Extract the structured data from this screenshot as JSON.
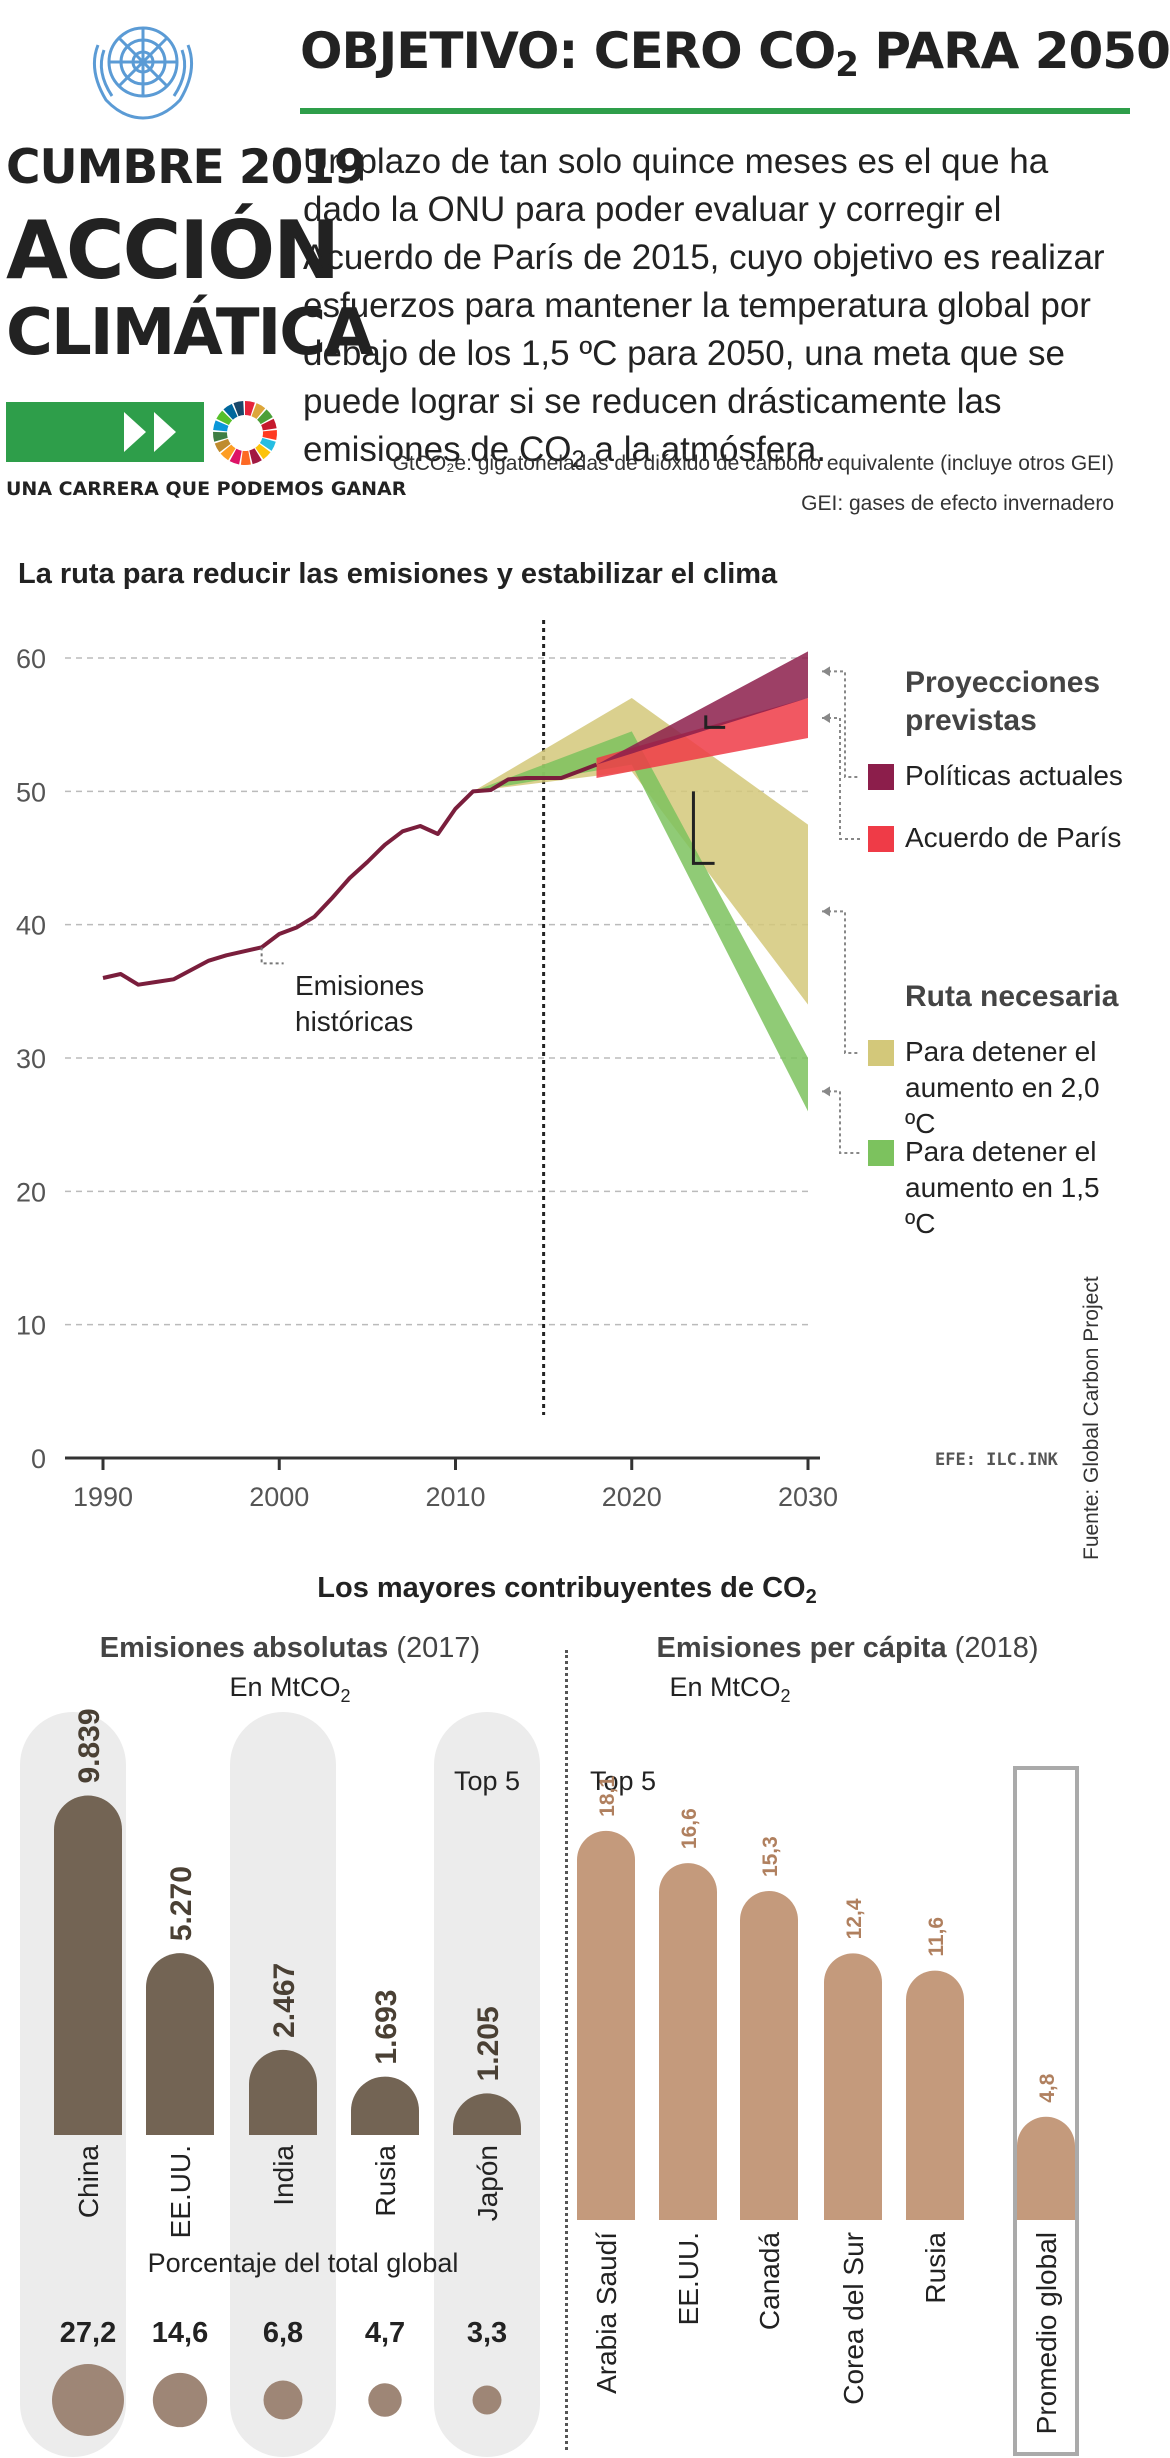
{
  "header": {
    "title_part1": "OBJETIVO: CERO CO",
    "title_sub": "2",
    "title_part2": " PARA 2050",
    "summit_line1": "CUMBRE 2019",
    "summit_line2": "ACCIÓN",
    "summit_line3": "CLIMÁTICA",
    "tagline": "UNA CARRERA QUE PODEMOS GANAR",
    "colors": {
      "un_blue": "#5b9bd5",
      "accent_green": "#2e9e4a"
    }
  },
  "intro": {
    "text_part1": "Un plazo de tan solo quince meses es el que ha dado la ONU para poder evaluar y corregir el Acuerdo de París de 2015, cuyo objetivo es realizar esfuerzos para mantener la temperatura global por debajo de los 1,5 ºC para 2050, una meta que se puede lograr si se reducen drásticamente las emisiones de CO",
    "text_sub": "2",
    "text_part2": " a la atmósfera."
  },
  "notes": {
    "gtco2": "GtCO₂e: gigatoneladas de dióxido de carbono equivalente (incluye otros GEI)",
    "gei": "GEI: gases de efecto invernadero"
  },
  "chart_data": [
    {
      "type": "line",
      "title": "La ruta para reducir las emisiones y estabilizar el clima",
      "ylim": [
        0,
        60
      ],
      "xlim": [
        1990,
        2030
      ],
      "yticks": [
        "0",
        "10",
        "20",
        "30",
        "40",
        "50",
        "60"
      ],
      "xticks": [
        "1990",
        "2000",
        "2010",
        "2020",
        "2030"
      ],
      "grid": true,
      "vertical_marker_year": 2015,
      "historical": {
        "label_line1": "Emisiones",
        "label_line2": "históricas",
        "x": [
          1990,
          1991,
          1992,
          1993,
          1994,
          1995,
          1996,
          1997,
          1998,
          1999,
          2000,
          2001,
          2002,
          2003,
          2004,
          2005,
          2006,
          2007,
          2008,
          2009,
          2010,
          2011,
          2012,
          2013,
          2014,
          2015,
          2016,
          2017,
          2018
        ],
        "y": [
          36.0,
          36.3,
          35.5,
          35.7,
          35.9,
          36.6,
          37.3,
          37.7,
          38.0,
          38.3,
          39.3,
          39.8,
          40.6,
          42.0,
          43.5,
          44.7,
          46.0,
          47.0,
          47.4,
          46.8,
          48.7,
          50.0,
          50.1,
          50.9,
          51.0,
          51.0,
          51.0,
          51.5,
          52.0
        ]
      },
      "legend_groups": {
        "projections_line1": "Proyecciones",
        "projections_line2": "previstas",
        "required_path": "Ruta necesaria"
      },
      "series": [
        {
          "name": "Políticas actuales",
          "color": "#8c1e4b",
          "x": [
            2018,
            2030
          ],
          "y_low": [
            52.0,
            57.0
          ],
          "y_high": [
            52.0,
            60.5
          ]
        },
        {
          "name": "Acuerdo de París",
          "color": "#ef3b47",
          "x": [
            2018,
            2030
          ],
          "y_low": [
            51.0,
            54.0
          ],
          "y_high": [
            52.5,
            57.0
          ]
        },
        {
          "name_line1": "Para detener el",
          "name_line2": "aumento en 2,0 ºC",
          "color": "#d3c87a",
          "x": [
            2011,
            2020,
            2030
          ],
          "y_low": [
            50.0,
            51.5,
            34.0
          ],
          "y_high": [
            50.0,
            57.0,
            47.5
          ]
        },
        {
          "name_line1": "Para detener el",
          "name_line2": "aumento en 1,5 ºC",
          "color": "#7cc25e",
          "x": [
            2011,
            2020,
            2030
          ],
          "y_low": [
            50.0,
            52.0,
            26.0
          ],
          "y_high": [
            50.0,
            54.5,
            30.0
          ]
        }
      ],
      "source": "Fuente: Global Carbon Project",
      "credit": "EFE: ILC.INK"
    },
    {
      "type": "bar",
      "section_title_part1": "Los mayores contribuyentes de CO",
      "section_title_sub": "2",
      "title_bold": "Emisiones absolutas",
      "title_year": " (2017)",
      "unit_part1": "En MtCO",
      "unit_sub": "2",
      "top_label": "Top 5",
      "categories": [
        "China",
        "EE.UU.",
        "India",
        "Rusia",
        "Japón"
      ],
      "values": [
        9839,
        5270,
        2467,
        1693,
        1205
      ],
      "value_labels": [
        "9.839",
        "5.270",
        "2.467",
        "1.693",
        "1.205"
      ],
      "share_title": "Porcentaje del total global",
      "share_labels": [
        "27,2",
        "14,6",
        "6,8",
        "4,7",
        "3,3"
      ],
      "share_values": [
        27.2,
        14.6,
        6.8,
        4.7,
        3.3
      ],
      "color": "#736454"
    },
    {
      "type": "bar",
      "title_bold": "Emisiones per cápita",
      "title_year": " (2018)",
      "unit_part1": "En MtCO",
      "unit_sub": "2",
      "top_label": "Top 5",
      "categories": [
        "Arabia Saudí",
        "EE.UU.",
        "Canadá",
        "Corea del Sur",
        "Rusia",
        "Promedio global"
      ],
      "values": [
        18.1,
        16.6,
        15.3,
        12.4,
        11.6,
        4.8
      ],
      "value_labels": [
        "18,1",
        "16,6",
        "15,3",
        "12,4",
        "11,6",
        "4,8"
      ],
      "color": "#c49a7c",
      "label_color": "#b0805f"
    }
  ]
}
